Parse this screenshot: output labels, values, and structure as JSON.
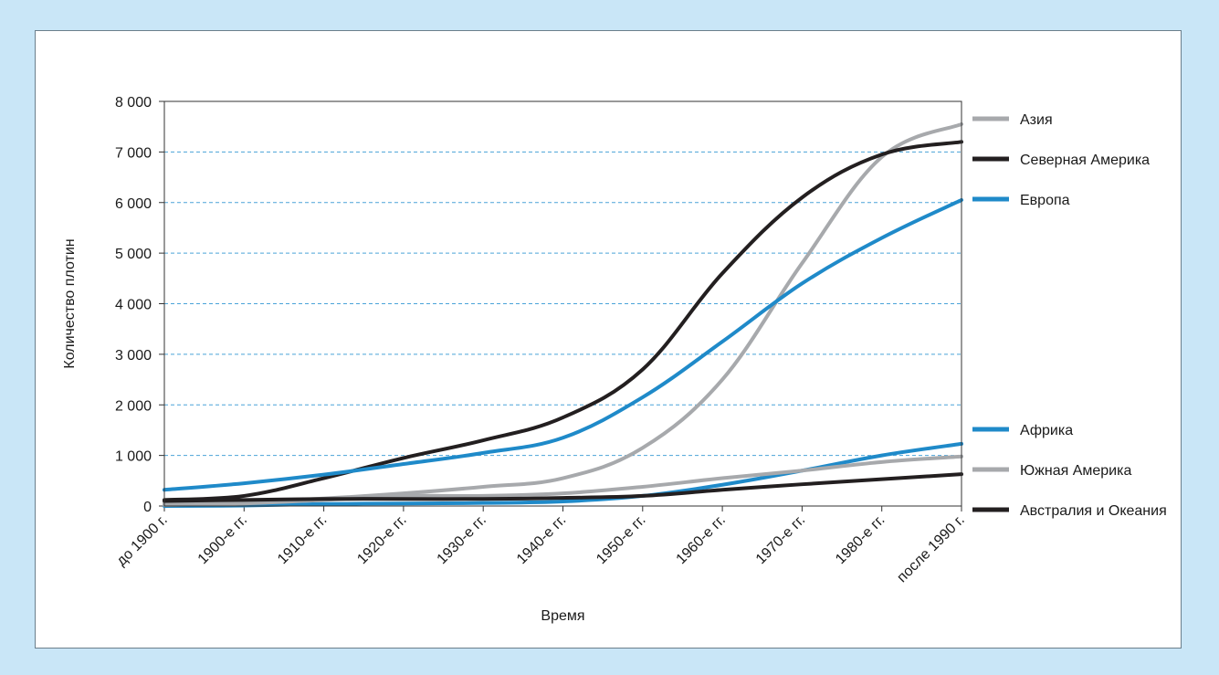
{
  "chart_data": {
    "type": "line",
    "xlabel": "Время",
    "ylabel": "Количество плотин",
    "ylim": [
      0,
      8000
    ],
    "yticks": [
      0,
      1000,
      2000,
      3000,
      4000,
      5000,
      6000,
      7000,
      8000
    ],
    "ytick_labels": [
      "0",
      "1 000",
      "2 000",
      "3 000",
      "4 000",
      "5 000",
      "6 000",
      "7 000",
      "8 000"
    ],
    "grid": "horizontal dashed",
    "legend_placement": "right",
    "categories": [
      "до 1900 г.",
      "1900-е гг.",
      "1910-е гг.",
      "1920-е гг.",
      "1930-е гг.",
      "1940-е гг.",
      "1950-е гг.",
      "1960-е гг.",
      "1970-е гг.",
      "1980-е гг.",
      "после 1990 г."
    ],
    "series": [
      {
        "name": "Азия",
        "color": "#a7a9ac",
        "values": [
          50,
          80,
          150,
          250,
          380,
          550,
          1150,
          2500,
          4800,
          6900,
          7550
        ]
      },
      {
        "name": "Северная Америка",
        "color": "#231f20",
        "values": [
          120,
          200,
          550,
          950,
          1300,
          1750,
          2700,
          4600,
          6100,
          6950,
          7200
        ]
      },
      {
        "name": "Европа",
        "color": "#1f8ac9",
        "values": [
          320,
          450,
          620,
          830,
          1050,
          1350,
          2150,
          3250,
          4400,
          5300,
          6050
        ]
      },
      {
        "name": "Африка",
        "color": "#1f8ac9",
        "values": [
          0,
          10,
          40,
          50,
          60,
          90,
          200,
          420,
          700,
          1000,
          1230
        ]
      },
      {
        "name": "Южная Америка",
        "color": "#a7a9ac",
        "values": [
          20,
          50,
          120,
          200,
          200,
          250,
          380,
          550,
          700,
          870,
          980
        ]
      },
      {
        "name": "Австралия и Океания",
        "color": "#231f20",
        "values": [
          100,
          120,
          140,
          140,
          140,
          160,
          200,
          320,
          430,
          530,
          630
        ]
      }
    ]
  }
}
